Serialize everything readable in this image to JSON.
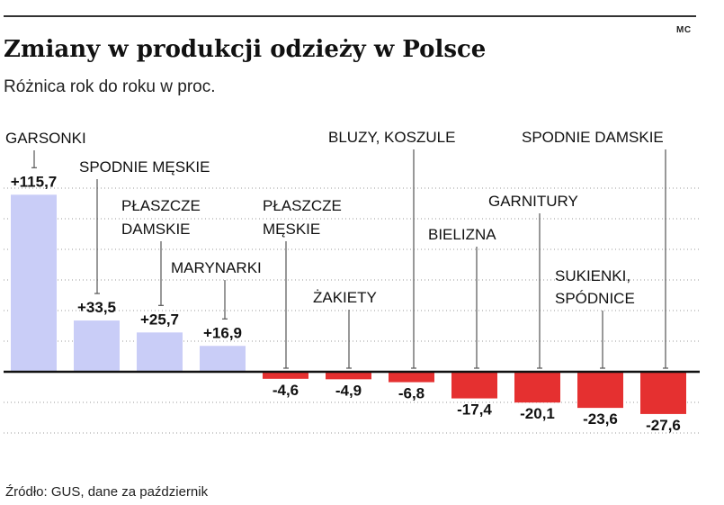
{
  "credit": "MC",
  "source": "Źródło: GUS, dane za październik",
  "colors": {
    "positive": "#c9cdf7",
    "negative": "#e53030",
    "axis": "#111111",
    "grid": "#999999",
    "leader": "#555555"
  },
  "chart_data": {
    "type": "bar",
    "title": "Zmiany w produkcji odzieży w Polsce",
    "subtitle": "Różnica rok do roku w proc.",
    "categories": [
      [
        "GARSONKI"
      ],
      [
        "SPODNIE MĘSKIE"
      ],
      [
        "PŁASZCZE",
        "DAMSKIE"
      ],
      [
        "MARYNARKI"
      ],
      [
        "PŁASZCZE",
        "MĘSKIE"
      ],
      [
        "ŻAKIETY"
      ],
      [
        "BLUZY, KOSZULE"
      ],
      [
        "BIELIZNA"
      ],
      [
        "GARNITURY"
      ],
      [
        "SUKIENKI,",
        "SPÓDNICE"
      ],
      [
        "SPODNIE DAMSKIE"
      ]
    ],
    "values": [
      115.7,
      33.5,
      25.7,
      16.9,
      -4.6,
      -4.9,
      -6.8,
      -17.4,
      -20.1,
      -23.6,
      -27.6
    ],
    "value_labels": [
      "+115,7",
      "+33,5",
      "+25,7",
      "+16,9",
      "-4,6",
      "-4,9",
      "-6,8",
      "-17,4",
      "-20,1",
      "-23,6",
      "-27,6"
    ],
    "ylim": [
      -40,
      120
    ],
    "grid": true,
    "legend": "none",
    "xlabel": "",
    "ylabel": ""
  }
}
